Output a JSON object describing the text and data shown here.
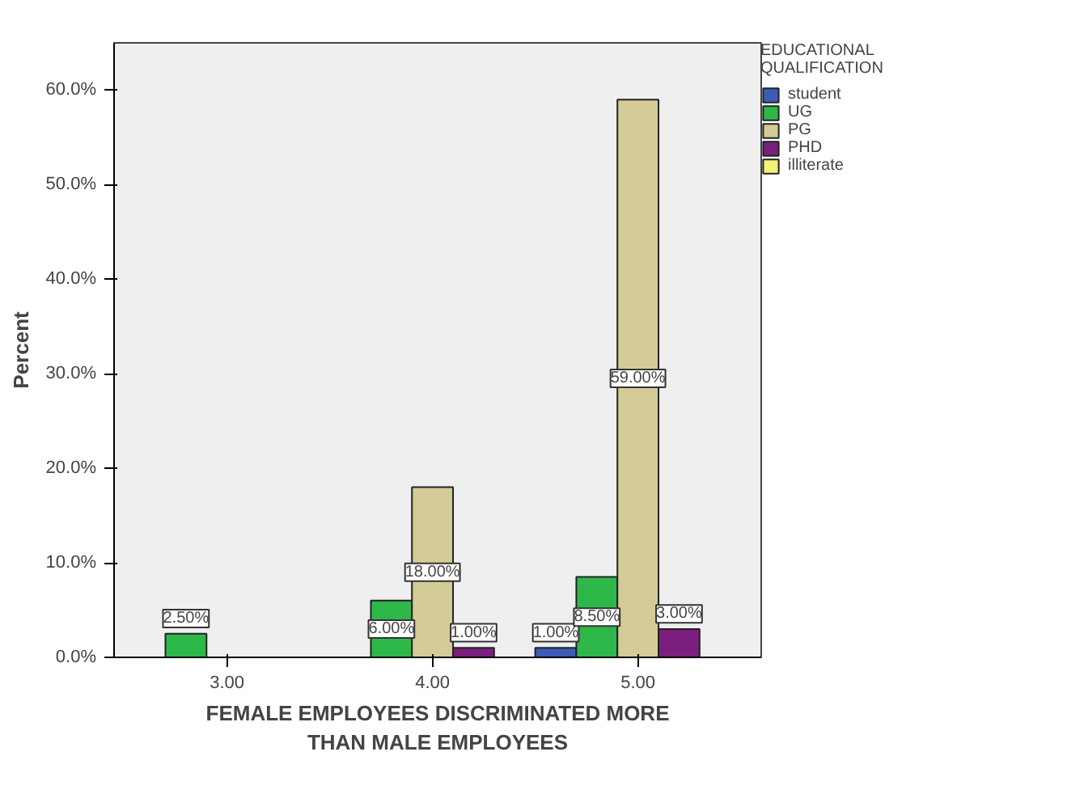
{
  "chart_data": {
    "type": "bar",
    "xlabel": "FEMALE EMPLOYEES DISCRIMINATED MORE\nTHAN MALE EMPLOYEES",
    "ylabel": "Percent",
    "legend_title": "EDUCATIONAL\nQUALIFICATION",
    "categories": [
      "3.00",
      "4.00",
      "5.00"
    ],
    "series": [
      {
        "name": "student",
        "color": "#3d5cb8",
        "values": [
          null,
          null,
          1.0
        ],
        "value_labels": [
          null,
          null,
          "1.00%"
        ]
      },
      {
        "name": "UG",
        "color": "#2eb84a",
        "values": [
          2.5,
          6.0,
          8.5
        ],
        "value_labels": [
          "2.50%",
          "6.00%",
          "8.50%"
        ]
      },
      {
        "name": "PG",
        "color": "#d4cc96",
        "values": [
          null,
          18.0,
          59.0
        ],
        "value_labels": [
          null,
          "18.00%",
          "59.00%"
        ]
      },
      {
        "name": "PHD",
        "color": "#7b1f7e",
        "values": [
          null,
          1.0,
          3.0
        ],
        "value_labels": [
          null,
          "1.00%",
          "3.00%"
        ]
      },
      {
        "name": "illiterate",
        "color": "#f5f27a",
        "values": [
          null,
          null,
          null
        ]
      }
    ],
    "ylim": [
      0,
      65
    ],
    "yticks": [
      {
        "value": 0,
        "label": "0.0%"
      },
      {
        "value": 10,
        "label": "10.0%"
      },
      {
        "value": 20,
        "label": "20.0%"
      },
      {
        "value": 30,
        "label": "30.0%"
      },
      {
        "value": 40,
        "label": "40.0%"
      },
      {
        "value": 50,
        "label": "50.0%"
      },
      {
        "value": 60,
        "label": "60.0%"
      }
    ],
    "legend": "right",
    "grid": false
  }
}
